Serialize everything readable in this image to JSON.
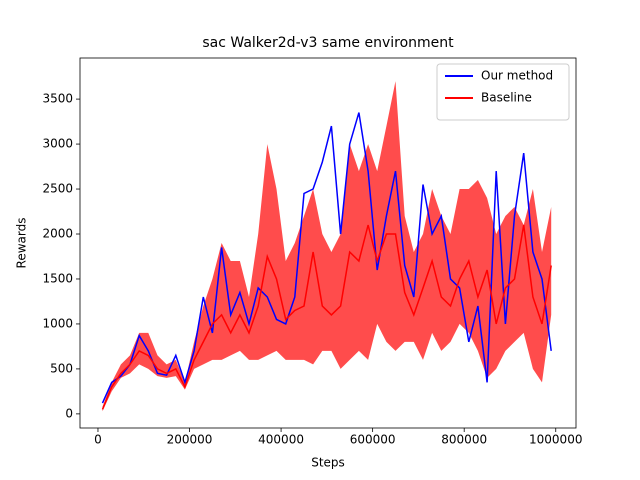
{
  "chart_data": {
    "type": "line",
    "title": "sac Walker2d-v3 same environment",
    "x_label": "Steps",
    "y_label": "Rewards",
    "x": [
      10000,
      30000,
      50000,
      70000,
      90000,
      110000,
      130000,
      150000,
      170000,
      190000,
      210000,
      230000,
      250000,
      270000,
      290000,
      310000,
      330000,
      350000,
      370000,
      390000,
      410000,
      430000,
      450000,
      470000,
      490000,
      510000,
      530000,
      550000,
      570000,
      590000,
      610000,
      630000,
      650000,
      670000,
      690000,
      710000,
      730000,
      750000,
      770000,
      790000,
      810000,
      830000,
      850000,
      870000,
      890000,
      910000,
      930000,
      950000,
      970000,
      990000
    ],
    "series": [
      {
        "name": "Our method",
        "color": "#0000ff",
        "values": [
          120,
          350,
          420,
          550,
          870,
          700,
          450,
          430,
          650,
          350,
          700,
          1300,
          900,
          1850,
          1100,
          1350,
          1000,
          1400,
          1300,
          1050,
          1000,
          1300,
          2450,
          2500,
          2800,
          3200,
          2000,
          3000,
          3350,
          2700,
          1600,
          2200,
          2700,
          1650,
          1300,
          2550,
          2000,
          2200,
          1500,
          1400,
          800,
          1200,
          350,
          2700,
          1000,
          2200,
          2900,
          1800,
          1500,
          700
        ]
      },
      {
        "name": "Baseline",
        "color": "#ff0000",
        "fill_alpha": 0.7,
        "values": [
          50,
          300,
          450,
          550,
          700,
          650,
          500,
          450,
          500,
          300,
          600,
          800,
          1000,
          1100,
          900,
          1100,
          900,
          1200,
          1750,
          1500,
          1050,
          1150,
          1200,
          1800,
          1200,
          1100,
          1200,
          1800,
          1700,
          2100,
          1700,
          2000,
          2000,
          1350,
          1100,
          1400,
          1700,
          1300,
          1200,
          1500,
          1700,
          1300,
          1600,
          1000,
          1400,
          1500,
          2100,
          1300,
          1000,
          1650
        ],
        "band": {
          "lower": [
            30,
            250,
            400,
            450,
            550,
            500,
            420,
            400,
            420,
            270,
            500,
            550,
            600,
            600,
            650,
            700,
            600,
            600,
            650,
            700,
            600,
            600,
            600,
            550,
            700,
            700,
            500,
            600,
            700,
            600,
            1000,
            800,
            700,
            800,
            800,
            600,
            900,
            700,
            800,
            1000,
            900,
            700,
            400,
            500,
            700,
            800,
            900,
            500,
            350,
            1100
          ],
          "upper": [
            80,
            350,
            550,
            650,
            900,
            900,
            650,
            550,
            600,
            350,
            800,
            1200,
            1500,
            1900,
            1700,
            1700,
            1300,
            2000,
            3000,
            2500,
            1700,
            1900,
            2200,
            2500,
            2000,
            1800,
            2000,
            3000,
            2700,
            3000,
            2700,
            3200,
            3700,
            2200,
            1800,
            2000,
            2500,
            2200,
            2000,
            2500,
            2500,
            2600,
            2400,
            2000,
            2200,
            2300,
            2100,
            2500,
            1800,
            2300
          ]
        }
      }
    ],
    "xlim": [
      -39250,
      1044250
    ],
    "xticks": [
      0,
      200000,
      400000,
      600000,
      800000,
      1000000
    ],
    "ylim": [
      -157,
      3957
    ],
    "yticks": [
      0,
      500,
      1000,
      1500,
      2000,
      2500,
      3000,
      3500
    ],
    "legend": "upper right",
    "grid": false
  }
}
